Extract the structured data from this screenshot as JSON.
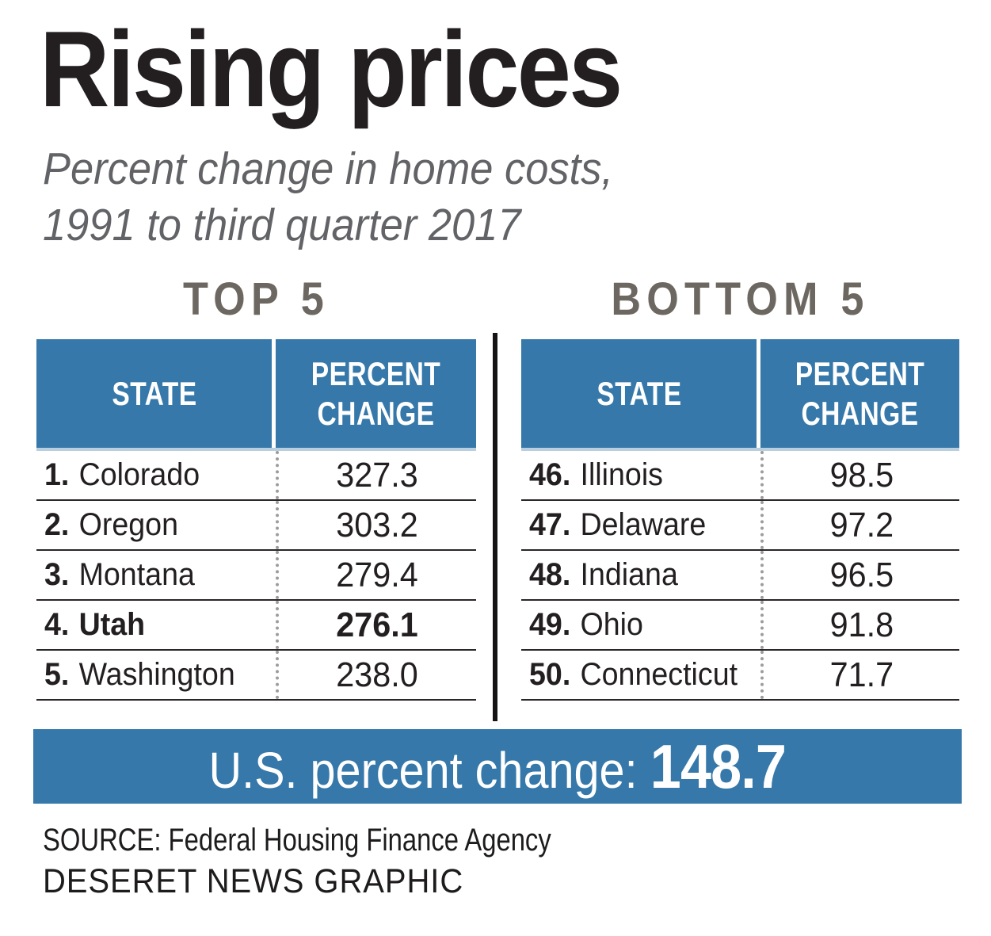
{
  "header": {
    "title": "Rising prices",
    "subtitle_line1": "Percent change in home costs,",
    "subtitle_line2": "1991 to third quarter 2017"
  },
  "top5": {
    "heading": "TOP 5",
    "columns": {
      "state": "STATE",
      "percent": "PERCENT CHANGE"
    },
    "rows": [
      {
        "rank": "1.",
        "state": "Colorado",
        "value": "327.3"
      },
      {
        "rank": "2.",
        "state": "Oregon",
        "value": "303.2"
      },
      {
        "rank": "3.",
        "state": "Montana",
        "value": "279.4"
      },
      {
        "rank": "4.",
        "state": "Utah",
        "value": "276.1",
        "highlight": true
      },
      {
        "rank": "5.",
        "state": "Washington",
        "value": "238.0"
      }
    ]
  },
  "bottom5": {
    "heading": "BOTTOM 5",
    "columns": {
      "state": "STATE",
      "percent": "PERCENT CHANGE"
    },
    "rows": [
      {
        "rank": "46.",
        "state": "Illinois",
        "value": "98.5"
      },
      {
        "rank": "47.",
        "state": "Delaware",
        "value": "97.2"
      },
      {
        "rank": "48.",
        "state": "Indiana",
        "value": "96.5"
      },
      {
        "rank": "49.",
        "state": "Ohio",
        "value": "91.8"
      },
      {
        "rank": "50.",
        "state": "Connecticut",
        "value": "71.7"
      }
    ]
  },
  "banner": {
    "label": "U.S. percent change:",
    "value": "148.7"
  },
  "footer": {
    "source": "SOURCE: Federal Housing Finance Agency",
    "credit": "DESERET NEWS GRAPHIC"
  },
  "colors": {
    "blue": "#3578a9",
    "heading_gray": "#6c6760",
    "text_dark": "#231f20",
    "subtitle_gray": "#626366",
    "dotted_divider": "#9c9c9c",
    "header_underline": "#b9cfe0"
  },
  "chart_data": {
    "type": "table",
    "title": "Rising prices",
    "subtitle": "Percent change in home costs, 1991 to third quarter 2017",
    "tables": [
      {
        "heading": "TOP 5",
        "columns": [
          "STATE",
          "PERCENT CHANGE"
        ],
        "rows": [
          {
            "rank": 1,
            "state": "Colorado",
            "percent_change": 327.3
          },
          {
            "rank": 2,
            "state": "Oregon",
            "percent_change": 303.2
          },
          {
            "rank": 3,
            "state": "Montana",
            "percent_change": 279.4
          },
          {
            "rank": 4,
            "state": "Utah",
            "percent_change": 276.1,
            "highlighted": true
          },
          {
            "rank": 5,
            "state": "Washington",
            "percent_change": 238.0
          }
        ]
      },
      {
        "heading": "BOTTOM 5",
        "columns": [
          "STATE",
          "PERCENT CHANGE"
        ],
        "rows": [
          {
            "rank": 46,
            "state": "Illinois",
            "percent_change": 98.5
          },
          {
            "rank": 47,
            "state": "Delaware",
            "percent_change": 97.2
          },
          {
            "rank": 48,
            "state": "Indiana",
            "percent_change": 96.5
          },
          {
            "rank": 49,
            "state": "Ohio",
            "percent_change": 91.8
          },
          {
            "rank": 50,
            "state": "Connecticut",
            "percent_change": 71.7
          }
        ]
      }
    ],
    "us_percent_change": 148.7,
    "source": "Federal Housing Finance Agency",
    "credit": "DESERET NEWS GRAPHIC"
  }
}
